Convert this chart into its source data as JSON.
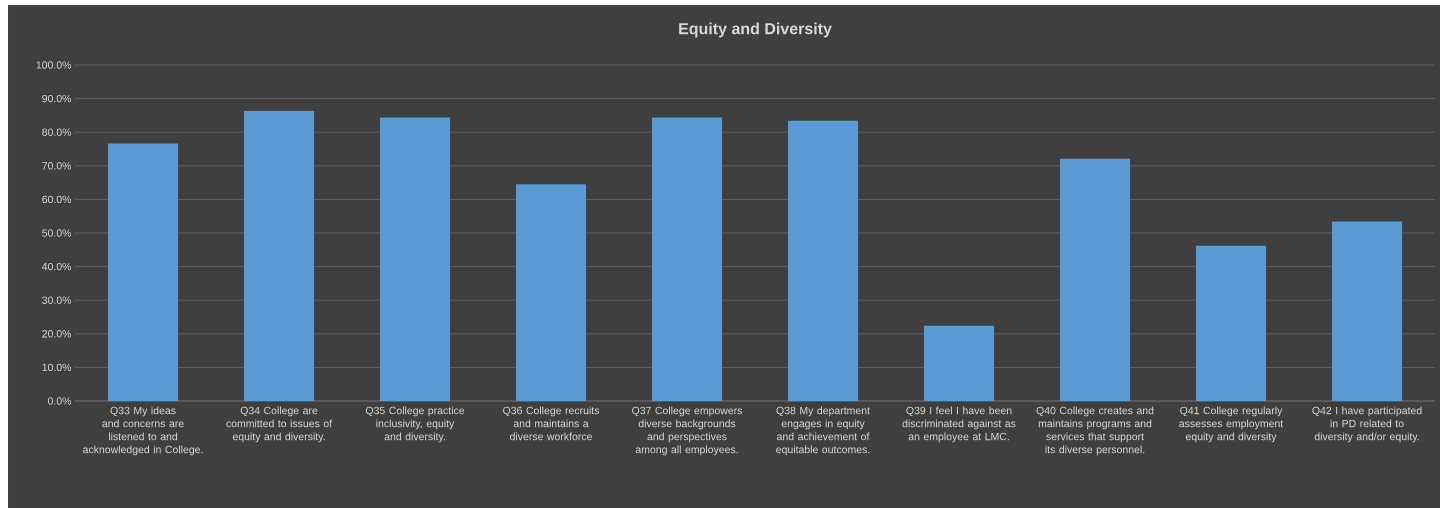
{
  "chart_data": {
    "type": "bar",
    "title": "Equity and Diversity",
    "categories": [
      "Q33 My ideas and concerns are listened to and acknowledged in College.",
      "Q34 College are committed to issues of equity and diversity.",
      "Q35 College practice inclusivity, equity and diversity.",
      "Q36 College recruits and maintains a diverse workforce",
      "Q37 College empowers diverse backgrounds and perspectives among all employees.",
      "Q38 My department engages in equity and achievement of equitable outcomes.",
      "Q39 I feel I have been discriminated against as an employee at LMC.",
      "Q40  College creates and maintains programs and services that support its diverse personnel.",
      "Q41 College regularly assesses employment equity and diversity",
      "Q42 I have participated in PD related to diversity and/or equity."
    ],
    "values": [
      76.6,
      86.4,
      84.4,
      64.5,
      84.4,
      83.4,
      22.4,
      72.1,
      46.2,
      53.4
    ],
    "color": "#5b9bd5",
    "ylim": [
      0,
      100
    ],
    "yticks": [
      {
        "value": 0,
        "label": "0.0%"
      },
      {
        "value": 10,
        "label": "10.0%"
      },
      {
        "value": 20,
        "label": "20.0%"
      },
      {
        "value": 30,
        "label": "30.0%"
      },
      {
        "value": 40,
        "label": "40.0%"
      },
      {
        "value": 50,
        "label": "50.0%"
      },
      {
        "value": 60,
        "label": "60.0%"
      },
      {
        "value": 70,
        "label": "70.0%"
      },
      {
        "value": 80,
        "label": "80.0%"
      },
      {
        "value": 90,
        "label": "90.0%"
      },
      {
        "value": 100,
        "label": "100.0%"
      }
    ],
    "grid": "y"
  }
}
